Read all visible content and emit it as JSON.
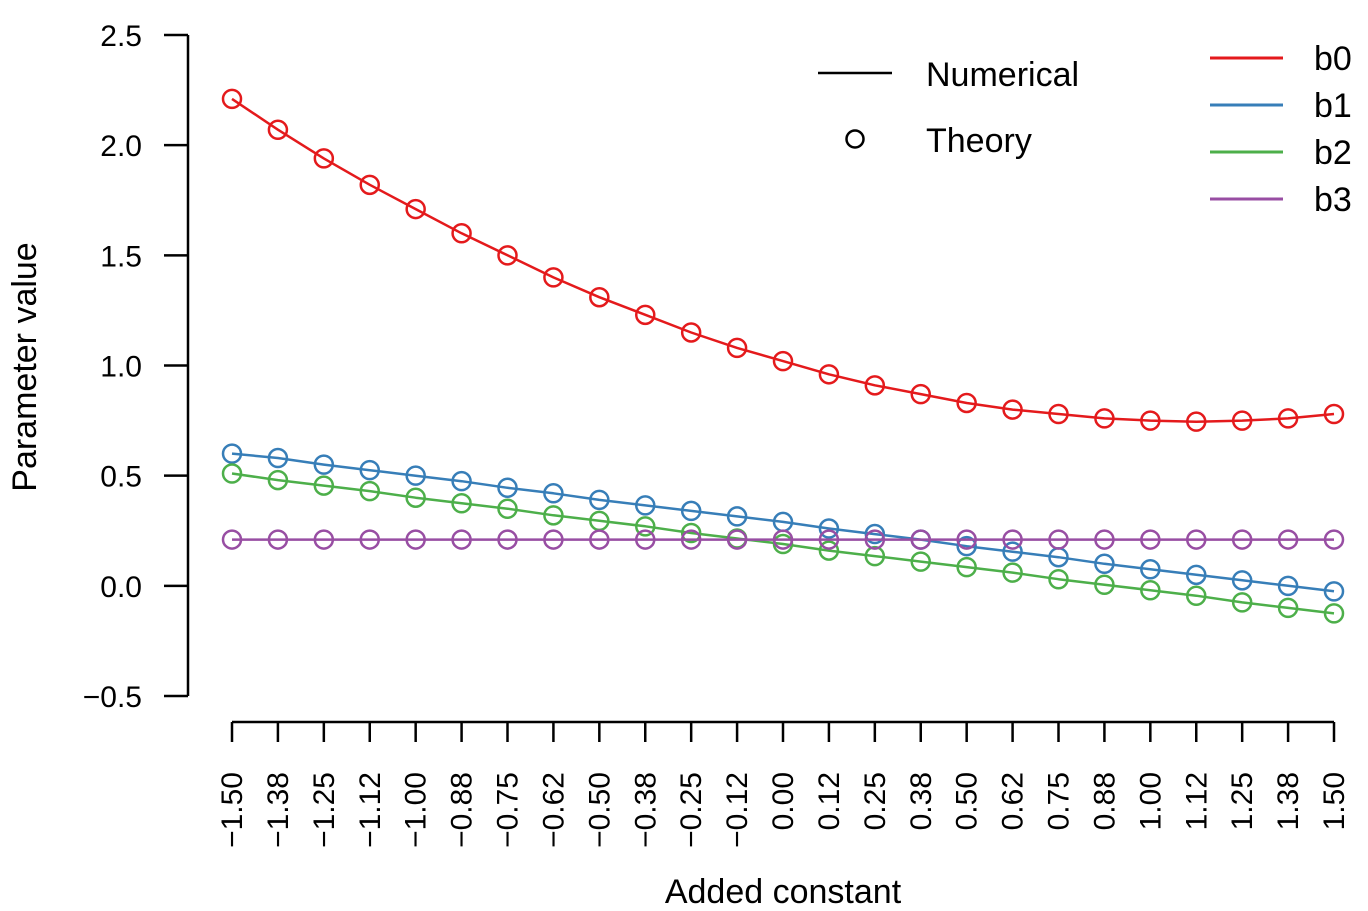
{
  "chart_data": {
    "type": "line",
    "title": "",
    "xlabel": "Added constant",
    "ylabel": "Parameter value",
    "ylim": [
      -0.5,
      2.5
    ],
    "y_ticks": [
      "−0.5",
      "0.0",
      "0.5",
      "1.0",
      "1.5",
      "2.0",
      "2.5"
    ],
    "y_tick_values": [
      -0.5,
      0.0,
      0.5,
      1.0,
      1.5,
      2.0,
      2.5
    ],
    "x": [
      -1.5,
      -1.375,
      -1.25,
      -1.125,
      -1.0,
      -0.875,
      -0.75,
      -0.625,
      -0.5,
      -0.375,
      -0.25,
      -0.125,
      0.0,
      0.125,
      0.25,
      0.375,
      0.5,
      0.625,
      0.75,
      0.875,
      1.0,
      1.125,
      1.25,
      1.375,
      1.5
    ],
    "x_tick_labels": [
      "−1.50",
      "−1.38",
      "−1.25",
      "−1.12",
      "−1.00",
      "−0.88",
      "−0.75",
      "−0.62",
      "−0.50",
      "−0.38",
      "−0.25",
      "−0.12",
      "0.00",
      "0.12",
      "0.25",
      "0.38",
      "0.50",
      "0.62",
      "0.75",
      "0.88",
      "1.00",
      "1.12",
      "1.25",
      "1.38",
      "1.50"
    ],
    "grid": false,
    "series": [
      {
        "name": "b0",
        "color": "#e41a1c",
        "values": [
          2.21,
          2.07,
          1.94,
          1.82,
          1.71,
          1.6,
          1.5,
          1.4,
          1.31,
          1.23,
          1.15,
          1.08,
          1.02,
          0.96,
          0.91,
          0.87,
          0.83,
          0.8,
          0.78,
          0.76,
          0.75,
          0.745,
          0.75,
          0.76,
          0.78
        ]
      },
      {
        "name": "b1",
        "color": "#377eb8",
        "values": [
          0.6,
          0.58,
          0.55,
          0.525,
          0.5,
          0.475,
          0.445,
          0.42,
          0.39,
          0.365,
          0.34,
          0.315,
          0.29,
          0.26,
          0.235,
          0.21,
          0.18,
          0.155,
          0.13,
          0.1,
          0.075,
          0.05,
          0.025,
          0.0,
          -0.025
        ]
      },
      {
        "name": "b2",
        "color": "#4daf4a",
        "values": [
          0.51,
          0.48,
          0.455,
          0.43,
          0.4,
          0.375,
          0.35,
          0.32,
          0.295,
          0.27,
          0.24,
          0.215,
          0.19,
          0.16,
          0.135,
          0.11,
          0.085,
          0.06,
          0.03,
          0.005,
          -0.02,
          -0.045,
          -0.075,
          -0.1,
          -0.125
        ]
      },
      {
        "name": "b3",
        "color": "#984ea3",
        "values": [
          0.21,
          0.21,
          0.21,
          0.21,
          0.21,
          0.21,
          0.21,
          0.21,
          0.21,
          0.21,
          0.21,
          0.21,
          0.21,
          0.21,
          0.21,
          0.21,
          0.21,
          0.21,
          0.21,
          0.21,
          0.21,
          0.21,
          0.21,
          0.21,
          0.21
        ]
      }
    ],
    "legend_style": [
      {
        "label": "Numerical",
        "kind": "line"
      },
      {
        "label": "Theory",
        "kind": "circle"
      }
    ],
    "legend_position": "top-right"
  }
}
